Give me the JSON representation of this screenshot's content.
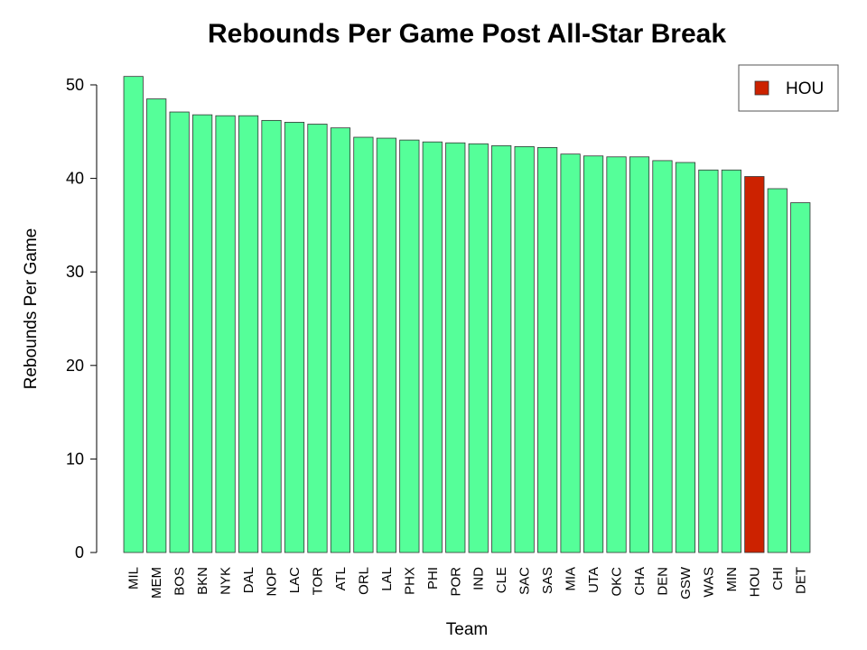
{
  "chart_data": {
    "type": "bar",
    "title": "Rebounds Per Game Post All-Star Break",
    "xlabel": "Team",
    "ylabel": "Rebounds Per Game",
    "ylim": [
      0,
      52
    ],
    "yticks": [
      0,
      10,
      20,
      30,
      40,
      50
    ],
    "categories": [
      "MIL",
      "MEM",
      "BOS",
      "BKN",
      "NYK",
      "DAL",
      "NOP",
      "LAC",
      "TOR",
      "ATL",
      "ORL",
      "LAL",
      "PHX",
      "PHI",
      "POR",
      "IND",
      "CLE",
      "SAC",
      "SAS",
      "MIA",
      "UTA",
      "OKC",
      "CHA",
      "DEN",
      "GSW",
      "WAS",
      "MIN",
      "HOU",
      "CHI",
      "DET"
    ],
    "values": [
      50.9,
      48.5,
      47.1,
      46.8,
      46.7,
      46.7,
      46.2,
      46.0,
      45.8,
      45.4,
      44.4,
      44.3,
      44.1,
      43.9,
      43.8,
      43.7,
      43.5,
      43.4,
      43.3,
      42.6,
      42.4,
      42.3,
      42.3,
      41.9,
      41.7,
      40.9,
      40.9,
      40.2,
      38.9,
      37.4
    ],
    "highlight": "HOU",
    "legend": {
      "position": "top-right",
      "entries": [
        {
          "label": "HOU",
          "color": "#cc2200"
        }
      ]
    },
    "colors": {
      "default": "#55ff99",
      "highlight": "#cc2200",
      "stroke": "#333333"
    },
    "grid": false
  }
}
